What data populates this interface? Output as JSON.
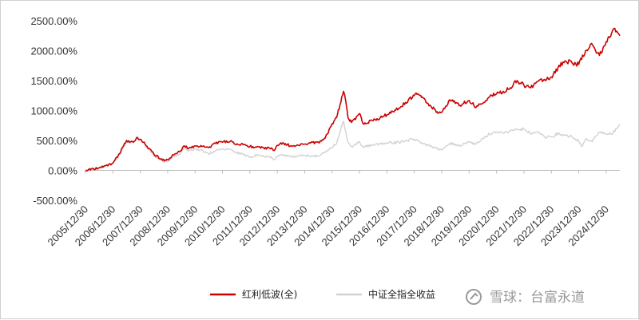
{
  "chart_data": {
    "type": "line",
    "title": "",
    "xlabel": "",
    "ylabel": "",
    "ylim": [
      -500,
      2500
    ],
    "y_ticks": [
      -500,
      0,
      500,
      1000,
      1500,
      2000,
      2500
    ],
    "y_tick_labels": [
      "-500.00%",
      "0.00%",
      "500.00%",
      "1000.00%",
      "1500.00%",
      "2000.00%",
      "2500.00%"
    ],
    "x_range": [
      "2005-12-30",
      "2025-06-30"
    ],
    "x_tick_labels": [
      "2005/12/30",
      "2006/12/30",
      "2007/12/30",
      "2008/12/30",
      "2009/12/30",
      "2010/12/30",
      "2011/12/30",
      "2012/12/30",
      "2013/12/30",
      "2014/12/30",
      "2015/12/30",
      "2016/12/30",
      "2017/12/30",
      "2018/12/30",
      "2019/12/30",
      "2020/12/30",
      "2021/12/30",
      "2022/12/30",
      "2023/12/30",
      "2024/12/30"
    ],
    "grid": false,
    "legend_position": "bottom",
    "series": [
      {
        "name": "红利低波(全)",
        "color": "#cc0000",
        "points": [
          [
            "2005-12-30",
            0
          ],
          [
            "2006-06-30",
            40
          ],
          [
            "2006-12-30",
            120
          ],
          [
            "2007-03-30",
            280
          ],
          [
            "2007-06-30",
            500
          ],
          [
            "2007-09-30",
            470
          ],
          [
            "2007-11-15",
            550
          ],
          [
            "2007-12-30",
            520
          ],
          [
            "2008-03-30",
            400
          ],
          [
            "2008-06-30",
            270
          ],
          [
            "2008-09-30",
            190
          ],
          [
            "2008-11-15",
            160
          ],
          [
            "2008-12-30",
            180
          ],
          [
            "2009-03-30",
            270
          ],
          [
            "2009-06-30",
            330
          ],
          [
            "2009-08-10",
            410
          ],
          [
            "2009-09-30",
            360
          ],
          [
            "2009-12-30",
            410
          ],
          [
            "2010-03-30",
            400
          ],
          [
            "2010-06-30",
            380
          ],
          [
            "2010-09-30",
            450
          ],
          [
            "2010-12-30",
            470
          ],
          [
            "2011-04-15",
            490
          ],
          [
            "2011-06-30",
            430
          ],
          [
            "2011-09-30",
            430
          ],
          [
            "2011-12-30",
            400
          ],
          [
            "2012-03-30",
            390
          ],
          [
            "2012-06-30",
            380
          ],
          [
            "2012-09-30",
            360
          ],
          [
            "2012-11-30",
            350
          ],
          [
            "2012-12-30",
            420
          ],
          [
            "2013-02-15",
            460
          ],
          [
            "2013-06-30",
            410
          ],
          [
            "2013-12-30",
            440
          ],
          [
            "2014-06-30",
            470
          ],
          [
            "2014-09-30",
            540
          ],
          [
            "2014-12-30",
            780
          ],
          [
            "2015-02-28",
            880
          ],
          [
            "2015-04-15",
            1100
          ],
          [
            "2015-06-01",
            1320
          ],
          [
            "2015-06-30",
            1150
          ],
          [
            "2015-07-30",
            880
          ],
          [
            "2015-09-15",
            800
          ],
          [
            "2015-12-30",
            950
          ],
          [
            "2016-02-15",
            780
          ],
          [
            "2016-06-30",
            830
          ],
          [
            "2016-12-30",
            930
          ],
          [
            "2017-06-30",
            1060
          ],
          [
            "2017-12-30",
            1250
          ],
          [
            "2018-02-15",
            1280
          ],
          [
            "2018-06-30",
            1120
          ],
          [
            "2018-10-30",
            980
          ],
          [
            "2018-12-30",
            970
          ],
          [
            "2019-04-15",
            1180
          ],
          [
            "2019-08-30",
            1090
          ],
          [
            "2019-12-30",
            1170
          ],
          [
            "2020-03-30",
            1050
          ],
          [
            "2020-06-30",
            1120
          ],
          [
            "2020-09-30",
            1230
          ],
          [
            "2020-12-30",
            1280
          ],
          [
            "2021-03-30",
            1320
          ],
          [
            "2021-06-30",
            1380
          ],
          [
            "2021-09-30",
            1500
          ],
          [
            "2021-12-30",
            1420
          ],
          [
            "2022-03-30",
            1380
          ],
          [
            "2022-06-30",
            1480
          ],
          [
            "2022-09-30",
            1520
          ],
          [
            "2022-12-30",
            1560
          ],
          [
            "2023-03-30",
            1720
          ],
          [
            "2023-06-30",
            1830
          ],
          [
            "2023-09-30",
            1800
          ],
          [
            "2023-12-30",
            1770
          ],
          [
            "2024-03-30",
            2000
          ],
          [
            "2024-06-30",
            2100
          ],
          [
            "2024-09-30",
            1920
          ],
          [
            "2024-12-30",
            2150
          ],
          [
            "2025-02-15",
            2220
          ],
          [
            "2025-04-10",
            2370
          ],
          [
            "2025-06-30",
            2250
          ]
        ]
      },
      {
        "name": "中证全指全收益",
        "color": "#d2d2d2",
        "points": [
          [
            "2005-12-30",
            0
          ],
          [
            "2006-06-30",
            40
          ],
          [
            "2006-12-30",
            120
          ],
          [
            "2007-03-30",
            260
          ],
          [
            "2007-06-30",
            470
          ],
          [
            "2007-09-30",
            470
          ],
          [
            "2007-11-15",
            560
          ],
          [
            "2007-12-30",
            520
          ],
          [
            "2008-03-30",
            380
          ],
          [
            "2008-06-30",
            240
          ],
          [
            "2008-09-30",
            170
          ],
          [
            "2008-11-15",
            140
          ],
          [
            "2008-12-30",
            160
          ],
          [
            "2009-03-30",
            230
          ],
          [
            "2009-06-30",
            300
          ],
          [
            "2009-08-10",
            370
          ],
          [
            "2009-09-30",
            320
          ],
          [
            "2009-12-30",
            360
          ],
          [
            "2010-03-30",
            340
          ],
          [
            "2010-06-30",
            270
          ],
          [
            "2010-09-30",
            330
          ],
          [
            "2010-12-30",
            360
          ],
          [
            "2011-04-15",
            350
          ],
          [
            "2011-06-30",
            300
          ],
          [
            "2011-09-30",
            270
          ],
          [
            "2011-12-30",
            230
          ],
          [
            "2012-03-30",
            250
          ],
          [
            "2012-06-30",
            230
          ],
          [
            "2012-09-30",
            210
          ],
          [
            "2012-11-30",
            190
          ],
          [
            "2012-12-30",
            230
          ],
          [
            "2013-02-15",
            260
          ],
          [
            "2013-06-30",
            230
          ],
          [
            "2013-12-30",
            250
          ],
          [
            "2014-06-30",
            240
          ],
          [
            "2014-09-30",
            300
          ],
          [
            "2014-12-30",
            380
          ],
          [
            "2015-02-28",
            450
          ],
          [
            "2015-04-15",
            640
          ],
          [
            "2015-06-01",
            820
          ],
          [
            "2015-06-30",
            640
          ],
          [
            "2015-07-30",
            480
          ],
          [
            "2015-09-15",
            400
          ],
          [
            "2015-12-30",
            480
          ],
          [
            "2016-02-15",
            390
          ],
          [
            "2016-06-30",
            420
          ],
          [
            "2016-12-30",
            460
          ],
          [
            "2017-06-30",
            470
          ],
          [
            "2017-12-30",
            520
          ],
          [
            "2018-02-15",
            500
          ],
          [
            "2018-06-30",
            420
          ],
          [
            "2018-10-30",
            360
          ],
          [
            "2018-12-30",
            340
          ],
          [
            "2019-04-15",
            450
          ],
          [
            "2019-08-30",
            420
          ],
          [
            "2019-12-30",
            470
          ],
          [
            "2020-03-30",
            440
          ],
          [
            "2020-06-30",
            530
          ],
          [
            "2020-09-30",
            610
          ],
          [
            "2020-12-30",
            640
          ],
          [
            "2021-03-30",
            620
          ],
          [
            "2021-06-30",
            660
          ],
          [
            "2021-09-30",
            680
          ],
          [
            "2021-12-30",
            690
          ],
          [
            "2022-03-30",
            610
          ],
          [
            "2022-06-30",
            640
          ],
          [
            "2022-09-30",
            560
          ],
          [
            "2022-12-30",
            560
          ],
          [
            "2023-03-30",
            620
          ],
          [
            "2023-06-30",
            590
          ],
          [
            "2023-09-30",
            560
          ],
          [
            "2023-12-30",
            490
          ],
          [
            "2024-02-05",
            400
          ],
          [
            "2024-03-30",
            530
          ],
          [
            "2024-06-30",
            480
          ],
          [
            "2024-09-30",
            640
          ],
          [
            "2024-12-30",
            600
          ],
          [
            "2025-03-30",
            620
          ],
          [
            "2025-06-30",
            770
          ]
        ]
      }
    ]
  },
  "watermark": {
    "logo_name": "snowball-logo-icon",
    "text": "雪球：台富永道"
  }
}
